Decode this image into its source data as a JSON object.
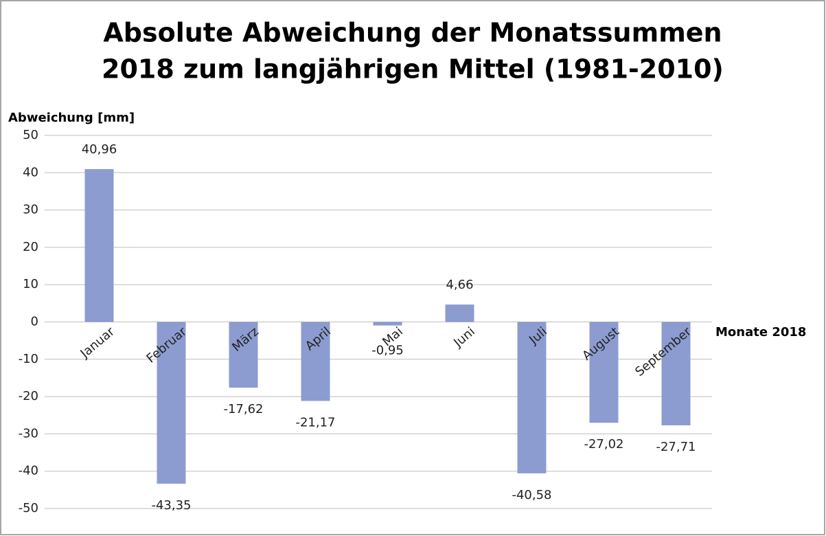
{
  "chart_data": {
    "type": "bar",
    "title": [
      "Absolute Abweichung der Monatssummen",
      "2018 zum langjährigen Mittel (1981-2010)"
    ],
    "y_label": "Abweichung [mm]",
    "x_label": "Monate 2018",
    "categories": [
      "Januar",
      "Februar",
      "März",
      "April",
      "Mai",
      "Juni",
      "Juli",
      "August",
      "September"
    ],
    "values": [
      40.96,
      -43.35,
      -17.62,
      -21.17,
      -0.95,
      4.66,
      -40.58,
      -27.02,
      -27.71
    ],
    "value_labels": [
      "40,96",
      "-43,35",
      "-17,62",
      "-21,17",
      "-0,95",
      "4,66",
      "-40,58",
      "-27,02",
      "-27,71"
    ],
    "color": "#8c9cd0",
    "ylim": [
      -50,
      50
    ],
    "yticks": [
      -50,
      -40,
      -30,
      -20,
      -10,
      0,
      10,
      20,
      30,
      40,
      50
    ],
    "grid": true
  }
}
